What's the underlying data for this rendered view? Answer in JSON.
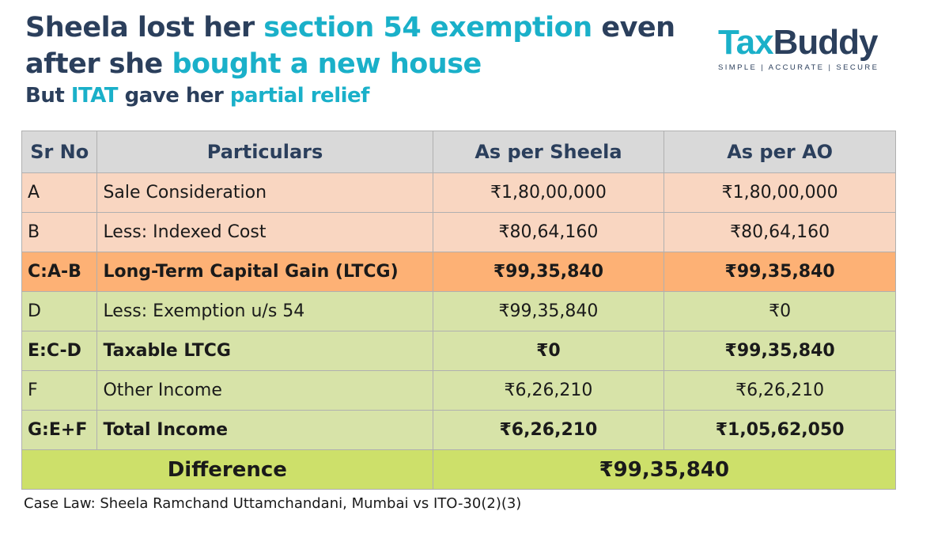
{
  "heading": {
    "line1": [
      "Sheela lost her ",
      "section 54 exemption",
      " even"
    ],
    "line2": [
      "after she ",
      "bought a new house"
    ],
    "line3": [
      "But ",
      "ITAT",
      " gave her ",
      "partial relief"
    ]
  },
  "logo": {
    "tax": "Tax",
    "buddy": "Buddy",
    "tagline": "SIMPLE | ACCURATE | SECURE"
  },
  "colors": {
    "navy": "#2b3f5c",
    "teal": "#1ab0c9",
    "peach": "#f9d6c1",
    "orange": "#fdb175",
    "green": "#d7e3a8",
    "lime": "#cde06a"
  },
  "table": {
    "headers": [
      "Sr No",
      "Particulars",
      "As per Sheela",
      "As per AO"
    ],
    "rows": [
      {
        "sr": "A",
        "particular": "Sale Consideration",
        "sheela": "₹1,80,00,000",
        "ao": "₹1,80,00,000"
      },
      {
        "sr": "B",
        "particular": "Less: Indexed Cost",
        "sheela": "₹80,64,160",
        "ao": "₹80,64,160"
      },
      {
        "sr": "C:A-B",
        "particular": "Long-Term Capital Gain (LTCG)",
        "sheela": "₹99,35,840",
        "ao": "₹99,35,840"
      },
      {
        "sr": "D",
        "particular": "Less: Exemption u/s 54",
        "sheela": "₹99,35,840",
        "ao": "₹0"
      },
      {
        "sr": "E:C-D",
        "particular": "Taxable LTCG",
        "sheela": "₹0",
        "ao": "₹99,35,840"
      },
      {
        "sr": "F",
        "particular": "Other Income",
        "sheela": "₹6,26,210",
        "ao": "₹6,26,210"
      },
      {
        "sr": "G:E+F",
        "particular": "Total Income",
        "sheela": "₹6,26,210",
        "ao": "₹1,05,62,050"
      }
    ],
    "difference": {
      "label": "Difference",
      "value": "₹99,35,840"
    }
  },
  "case_law": "Case Law: Sheela Ramchand Uttamchandani, Mumbai vs ITO-30(2)(3)"
}
